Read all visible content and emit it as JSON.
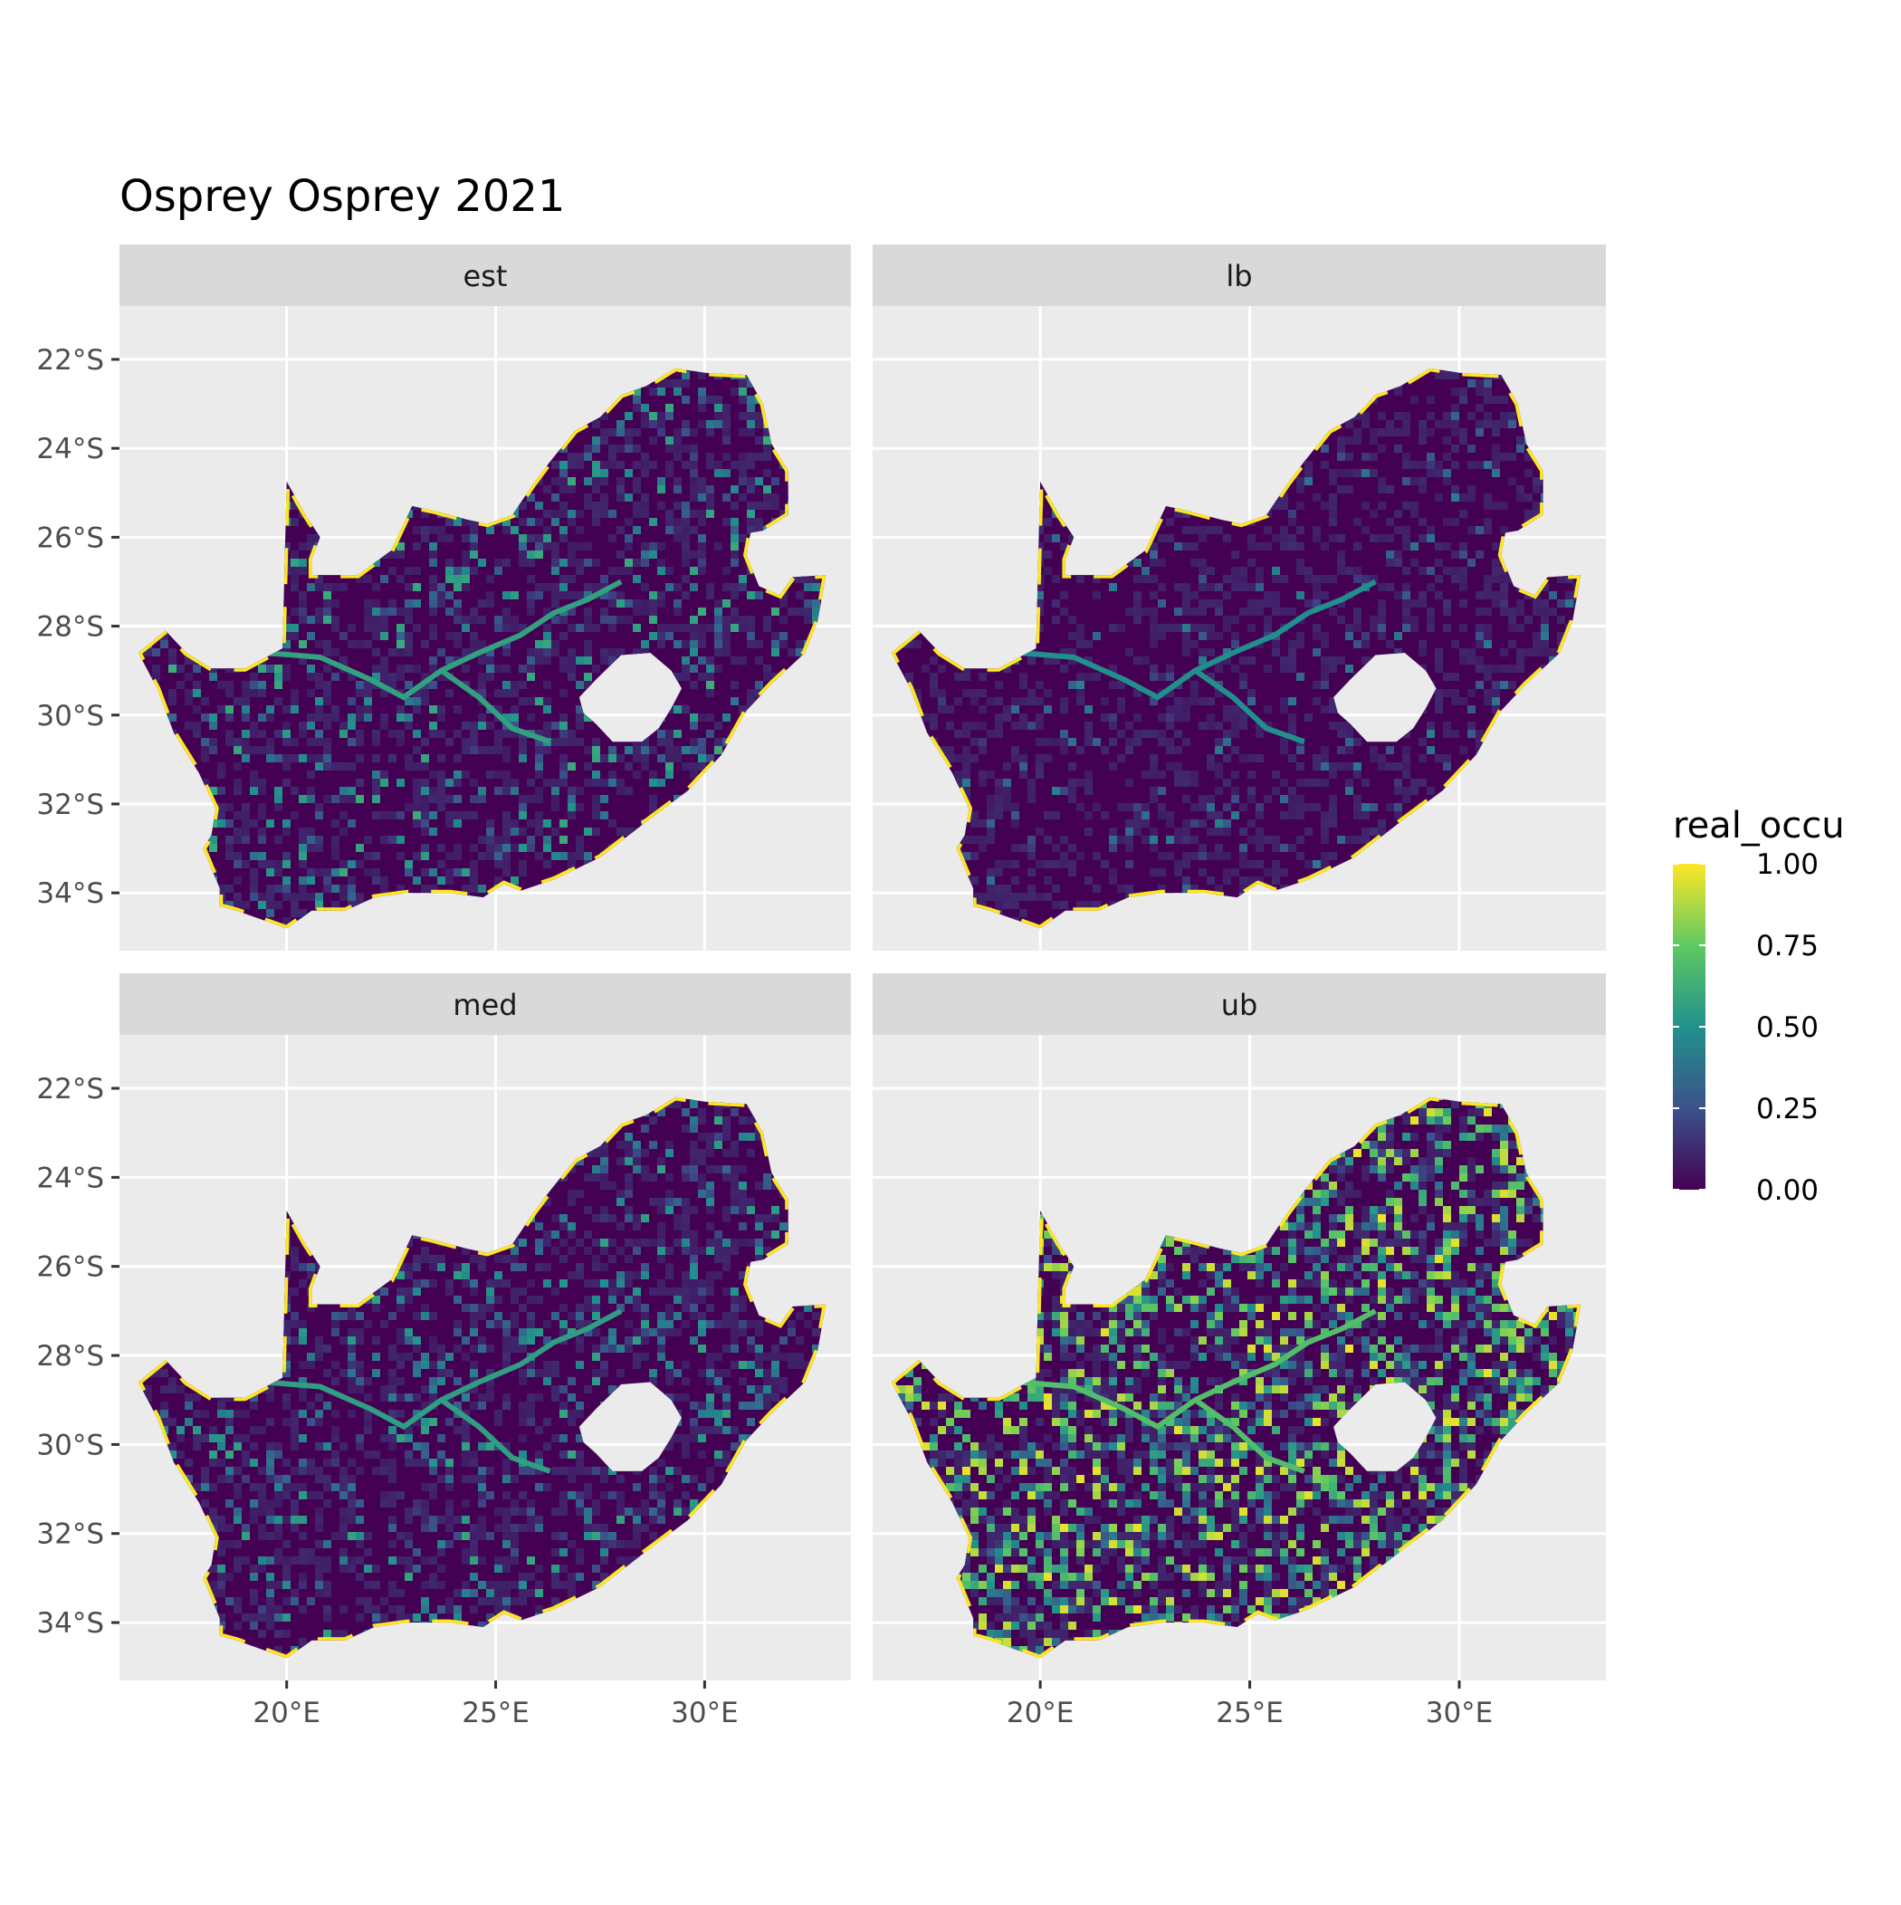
{
  "title": "Osprey Osprey 2021",
  "panels": [
    {
      "label": "est"
    },
    {
      "label": "lb"
    },
    {
      "label": "med"
    },
    {
      "label": "ub"
    }
  ],
  "x_ticks": [
    "20°E",
    "25°E",
    "30°E"
  ],
  "y_ticks": [
    "22°S",
    "24°S",
    "26°S",
    "28°S",
    "30°S",
    "32°S",
    "34°S"
  ],
  "legend": {
    "title": "real_occu",
    "ticks": [
      "1.00",
      "0.75",
      "0.50",
      "0.25",
      "0.00"
    ]
  },
  "colors": {
    "panel_bg": "#ebebeb",
    "strip_bg": "#d9d9d9",
    "grid": "#ffffff",
    "land_low": "#440154",
    "land_mid": "#21918c",
    "land_high": "#fde725"
  },
  "chart_data": {
    "type": "heatmap",
    "title": "Osprey Osprey 2021",
    "facets": [
      "est",
      "lb",
      "med",
      "ub"
    ],
    "xlim": [
      16.0,
      33.5
    ],
    "ylim": [
      -35.3,
      -20.8
    ],
    "x_ticks": [
      20,
      25,
      30
    ],
    "y_ticks": [
      -22,
      -24,
      -26,
      -28,
      -30,
      -32,
      -34
    ],
    "color_scale": "viridis",
    "value_range": [
      0,
      1
    ],
    "legend_title": "real_occu",
    "legend_position": "right",
    "grid": true,
    "mean_occupancy_estimate": {
      "est": 0.2,
      "lb": 0.08,
      "med": 0.18,
      "ub": 0.42
    }
  }
}
